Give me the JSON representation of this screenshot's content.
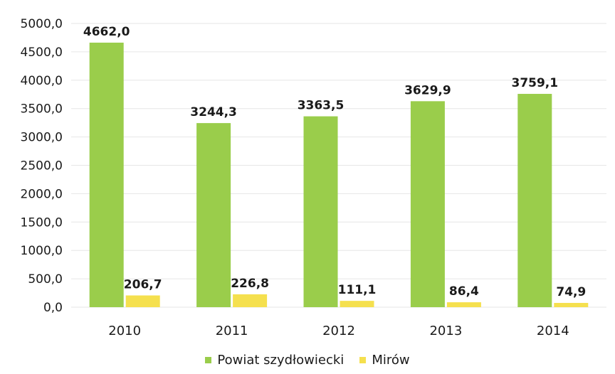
{
  "chart_data": {
    "type": "bar",
    "categories": [
      "2010",
      "2011",
      "2012",
      "2013",
      "2014"
    ],
    "series": [
      {
        "name": "Powiat szydłowiecki",
        "values": [
          4662.0,
          3244.3,
          3363.5,
          3629.9,
          3759.1
        ],
        "labels": [
          "4662,0",
          "3244,3",
          "3363,5",
          "3629,9",
          "3759,1"
        ],
        "color": "#9acd4b"
      },
      {
        "name": "Mirów",
        "values": [
          206.7,
          226.8,
          111.1,
          86.4,
          74.9
        ],
        "labels": [
          "206,7",
          "226,8",
          "111,1",
          "86,4",
          "74,9"
        ],
        "color": "#f5e04e"
      }
    ],
    "yticks": [
      "0,0",
      "500,0",
      "1000,0",
      "1500,0",
      "2000,0",
      "2500,0",
      "3000,0",
      "3500,0",
      "4000,0",
      "4500,0",
      "5000,0"
    ],
    "ylim": [
      0,
      5000
    ],
    "grid": true,
    "legend_position": "bottom"
  }
}
